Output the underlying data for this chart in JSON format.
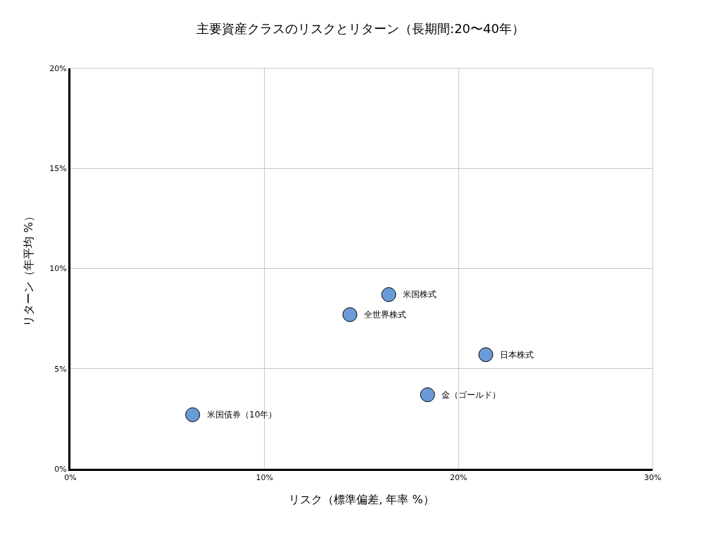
{
  "chart_data": {
    "type": "scatter",
    "title": "主要資産クラスのリスクとリターン（長期間:20〜40年）",
    "xlabel": "リスク（標準偏差, 年率 %）",
    "ylabel": "リターン（年平均 %）",
    "x": [
      16.4,
      14.4,
      21.4,
      18.4,
      6.3
    ],
    "series": [
      {
        "color": "#6a9bd8",
        "values": [
          8.7,
          7.7,
          5.7,
          3.7,
          2.7
        ]
      }
    ],
    "annotations": [
      {
        "text": "米国株式",
        "x": 16.4,
        "y": 8.7
      },
      {
        "text": "全世界株式",
        "x": 14.4,
        "y": 7.7
      },
      {
        "text": "日本株式",
        "x": 21.4,
        "y": 5.7
      },
      {
        "text": "金（ゴールド）",
        "x": 18.4,
        "y": 3.7
      },
      {
        "text": "米国債券（10年）",
        "x": 6.3,
        "y": 2.7
      }
    ],
    "xlim": [
      0,
      30
    ],
    "xticks": [
      {
        "value": 0,
        "label": "0%"
      },
      {
        "value": 10,
        "label": "10%"
      },
      {
        "value": 20,
        "label": "20%"
      },
      {
        "value": 30,
        "label": "30%"
      }
    ],
    "ylim": [
      0,
      20
    ],
    "yticks": [
      {
        "value": 0,
        "label": "0%"
      },
      {
        "value": 5,
        "label": "5%"
      },
      {
        "value": 10,
        "label": "10%"
      },
      {
        "value": 15,
        "label": "15%"
      },
      {
        "value": 20,
        "label": "20%"
      }
    ],
    "grid": true,
    "marker": "circle"
  }
}
